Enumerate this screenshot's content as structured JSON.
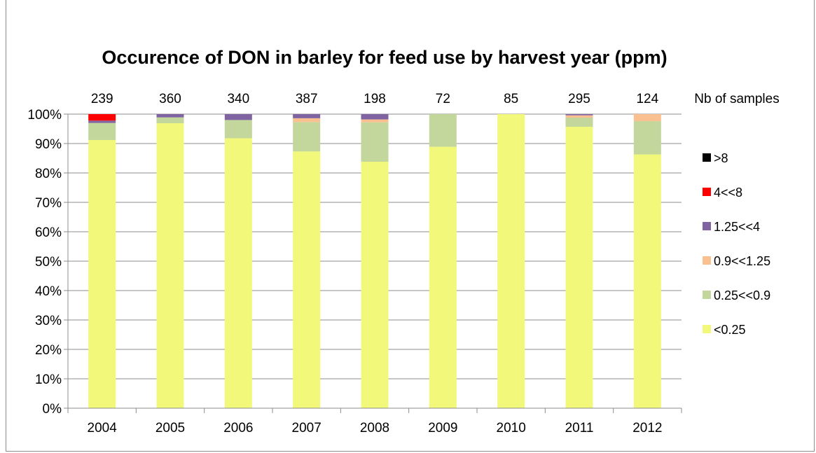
{
  "chart_data": {
    "type": "bar",
    "stacked": true,
    "title": "Occurence of DON in barley for feed use by harvest year (ppm)",
    "categories": [
      "2004",
      "2005",
      "2006",
      "2007",
      "2008",
      "2009",
      "2010",
      "2011",
      "2012"
    ],
    "sample_counts_label": "Nb of samples",
    "sample_counts": [
      "239",
      "360",
      "340",
      "387",
      "198",
      "72",
      "85",
      "295",
      "124"
    ],
    "ylim": [
      0,
      100
    ],
    "y_tick_labels": [
      "0%",
      "10%",
      "20%",
      "30%",
      "40%",
      "50%",
      "60%",
      "70%",
      "80%",
      "90%",
      "100%"
    ],
    "grid": true,
    "legend_position": "right",
    "series": [
      {
        "name": "<0.25",
        "color": "#f2f879",
        "values": [
          91.2,
          96.9,
          91.8,
          87.3,
          83.8,
          88.9,
          100,
          95.7,
          86.3
        ]
      },
      {
        "name": "0.25<<0.9",
        "color": "#c3d69b",
        "values": [
          5.8,
          2.0,
          6.2,
          10.0,
          13.4,
          11.1,
          0,
          3.1,
          11.3
        ]
      },
      {
        "name": "0.9<<1.25",
        "color": "#fac090",
        "values": [
          0,
          0,
          0,
          1.3,
          1.0,
          0,
          0,
          0.8,
          2.4
        ]
      },
      {
        "name": "1.25<<4",
        "color": "#8064a2",
        "values": [
          0.8,
          1.1,
          2.0,
          1.4,
          1.8,
          0,
          0,
          0.4,
          0
        ]
      },
      {
        "name": "4<<8",
        "color": "#ff0000",
        "values": [
          2.2,
          0,
          0,
          0,
          0,
          0,
          0,
          0,
          0
        ]
      },
      {
        "name": ">8",
        "color": "#000000",
        "values": [
          0,
          0,
          0,
          0,
          0,
          0,
          0,
          0,
          0
        ]
      }
    ],
    "legend_order": [
      ">8",
      "4<<8",
      "1.25<<4",
      "0.9<<1.25",
      "0.25<<0.9",
      "<0.25"
    ]
  }
}
